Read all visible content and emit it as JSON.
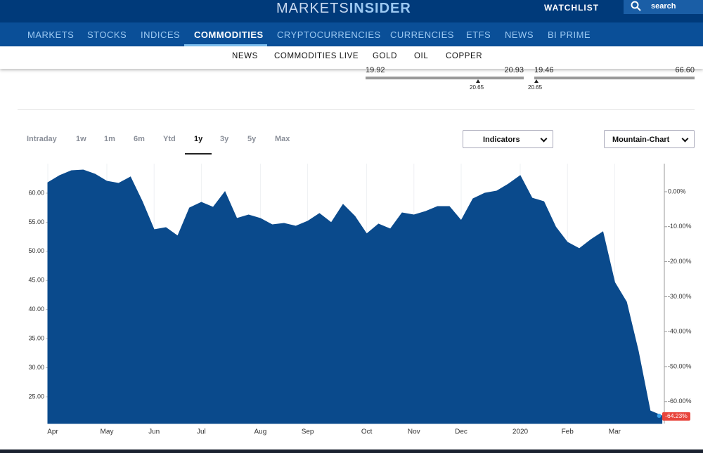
{
  "header": {
    "logo_a": "MARKETS",
    "logo_b": "INSIDER",
    "watchlist": "WATCHLIST",
    "search": "search"
  },
  "nav": [
    "MARKETS",
    "STOCKS",
    "INDICES",
    "COMMODITIES",
    "CRYPTOCURRENCIES",
    "CURRENCIES",
    "ETFS",
    "NEWS",
    "BI PRIME"
  ],
  "subnav": [
    "NEWS",
    "COMMODITIES LIVE",
    "GOLD",
    "OIL",
    "COPPER"
  ],
  "ranges": [
    {
      "low": "19.92",
      "high": "20.93",
      "marker": "20.65"
    },
    {
      "low": "19.46",
      "high": "66.60",
      "marker": "20.65"
    }
  ],
  "tabs": [
    "Intraday",
    "1w",
    "1m",
    "6m",
    "Ytd",
    "1y",
    "3y",
    "5y",
    "Max"
  ],
  "buttons": [
    "Indicators",
    "Mountain-Chart"
  ],
  "chart_data": {
    "type": "area",
    "color": "#0a4a8c",
    "grid": true,
    "categories": [
      "Apr",
      null,
      null,
      null,
      null,
      "May",
      null,
      null,
      null,
      "Jun",
      null,
      null,
      null,
      "Jul",
      null,
      null,
      null,
      null,
      "Aug",
      null,
      null,
      null,
      "Sep",
      null,
      null,
      null,
      null,
      "Oct",
      null,
      null,
      null,
      "Nov",
      null,
      null,
      null,
      "Dec",
      null,
      null,
      null,
      null,
      "2020",
      null,
      null,
      null,
      "Feb",
      null,
      null,
      null,
      "Mar",
      null,
      null,
      null,
      null
    ],
    "values": [
      61.81,
      63.02,
      63.86,
      63.98,
      63.26,
      62.05,
      61.69,
      62.78,
      58.55,
      53.72,
      54.09,
      52.64,
      57.46,
      58.43,
      57.58,
      60.24,
      55.65,
      56.26,
      55.65,
      54.57,
      54.81,
      54.33,
      55.17,
      56.5,
      54.93,
      58.07,
      56.02,
      53.0,
      54.69,
      53.84,
      56.62,
      56.26,
      56.86,
      57.71,
      57.71,
      55.29,
      59.03,
      60.0,
      60.36,
      61.57,
      63.02,
      59.15,
      58.55,
      54.21,
      51.55,
      50.46,
      52.03,
      53.36,
      44.67,
      41.29,
      32.84,
      22.59,
      21.74
    ],
    "ylim": [
      20.41,
      65.07
    ],
    "yticks": [
      {
        "value": 25,
        "label": "25.00"
      },
      {
        "value": 30,
        "label": "30.00"
      },
      {
        "value": 35,
        "label": "35.00"
      },
      {
        "value": 40,
        "label": "40.00"
      },
      {
        "value": 45,
        "label": "45.00"
      },
      {
        "value": 50,
        "label": "50.00"
      },
      {
        "value": 55,
        "label": "55.00"
      },
      {
        "value": 60,
        "label": "60.00"
      }
    ],
    "y2lim": [
      -66.27,
      8.03
    ],
    "y2ticks": [
      {
        "value": 0,
        "label": "0.00%"
      },
      {
        "value": -10,
        "label": "-10.00%"
      },
      {
        "value": -20,
        "label": "-20.00%"
      },
      {
        "value": -30,
        "label": "-30.00%"
      },
      {
        "value": -40,
        "label": "-40.00%"
      },
      {
        "value": -50,
        "label": "-50.00%"
      },
      {
        "value": -60,
        "label": "-60.00%"
      }
    ],
    "last_change": {
      "value": -64.23,
      "label": "-64.23%"
    }
  }
}
